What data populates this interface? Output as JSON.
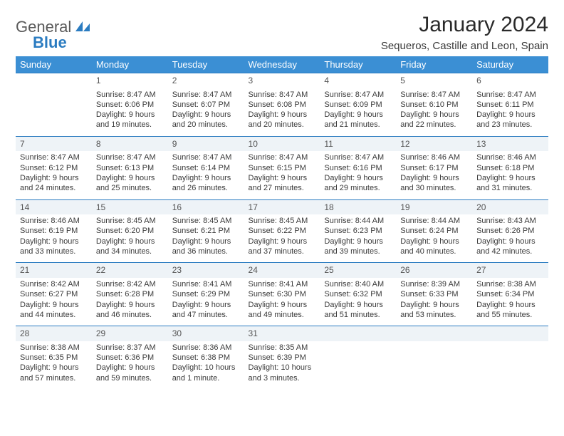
{
  "logo": {
    "line1": "General",
    "line2": "Blue"
  },
  "title": "January 2024",
  "location": "Sequeros, Castille and Leon, Spain",
  "colors": {
    "header_bg": "#3b8fd4",
    "header_text": "#ffffff",
    "daynum_bg": "#eef3f7",
    "rule": "#2b7cc1",
    "body_text": "#3a3a3a",
    "accent": "#2b7cc1"
  },
  "day_headers": [
    "Sunday",
    "Monday",
    "Tuesday",
    "Wednesday",
    "Thursday",
    "Friday",
    "Saturday"
  ],
  "weeks": [
    {
      "nums": [
        "",
        "1",
        "2",
        "3",
        "4",
        "5",
        "6"
      ],
      "details": [
        null,
        {
          "sunrise": "Sunrise: 8:47 AM",
          "sunset": "Sunset: 6:06 PM",
          "daylight1": "Daylight: 9 hours",
          "daylight2": "and 19 minutes."
        },
        {
          "sunrise": "Sunrise: 8:47 AM",
          "sunset": "Sunset: 6:07 PM",
          "daylight1": "Daylight: 9 hours",
          "daylight2": "and 20 minutes."
        },
        {
          "sunrise": "Sunrise: 8:47 AM",
          "sunset": "Sunset: 6:08 PM",
          "daylight1": "Daylight: 9 hours",
          "daylight2": "and 20 minutes."
        },
        {
          "sunrise": "Sunrise: 8:47 AM",
          "sunset": "Sunset: 6:09 PM",
          "daylight1": "Daylight: 9 hours",
          "daylight2": "and 21 minutes."
        },
        {
          "sunrise": "Sunrise: 8:47 AM",
          "sunset": "Sunset: 6:10 PM",
          "daylight1": "Daylight: 9 hours",
          "daylight2": "and 22 minutes."
        },
        {
          "sunrise": "Sunrise: 8:47 AM",
          "sunset": "Sunset: 6:11 PM",
          "daylight1": "Daylight: 9 hours",
          "daylight2": "and 23 minutes."
        }
      ]
    },
    {
      "nums": [
        "7",
        "8",
        "9",
        "10",
        "11",
        "12",
        "13"
      ],
      "details": [
        {
          "sunrise": "Sunrise: 8:47 AM",
          "sunset": "Sunset: 6:12 PM",
          "daylight1": "Daylight: 9 hours",
          "daylight2": "and 24 minutes."
        },
        {
          "sunrise": "Sunrise: 8:47 AM",
          "sunset": "Sunset: 6:13 PM",
          "daylight1": "Daylight: 9 hours",
          "daylight2": "and 25 minutes."
        },
        {
          "sunrise": "Sunrise: 8:47 AM",
          "sunset": "Sunset: 6:14 PM",
          "daylight1": "Daylight: 9 hours",
          "daylight2": "and 26 minutes."
        },
        {
          "sunrise": "Sunrise: 8:47 AM",
          "sunset": "Sunset: 6:15 PM",
          "daylight1": "Daylight: 9 hours",
          "daylight2": "and 27 minutes."
        },
        {
          "sunrise": "Sunrise: 8:47 AM",
          "sunset": "Sunset: 6:16 PM",
          "daylight1": "Daylight: 9 hours",
          "daylight2": "and 29 minutes."
        },
        {
          "sunrise": "Sunrise: 8:46 AM",
          "sunset": "Sunset: 6:17 PM",
          "daylight1": "Daylight: 9 hours",
          "daylight2": "and 30 minutes."
        },
        {
          "sunrise": "Sunrise: 8:46 AM",
          "sunset": "Sunset: 6:18 PM",
          "daylight1": "Daylight: 9 hours",
          "daylight2": "and 31 minutes."
        }
      ]
    },
    {
      "nums": [
        "14",
        "15",
        "16",
        "17",
        "18",
        "19",
        "20"
      ],
      "details": [
        {
          "sunrise": "Sunrise: 8:46 AM",
          "sunset": "Sunset: 6:19 PM",
          "daylight1": "Daylight: 9 hours",
          "daylight2": "and 33 minutes."
        },
        {
          "sunrise": "Sunrise: 8:45 AM",
          "sunset": "Sunset: 6:20 PM",
          "daylight1": "Daylight: 9 hours",
          "daylight2": "and 34 minutes."
        },
        {
          "sunrise": "Sunrise: 8:45 AM",
          "sunset": "Sunset: 6:21 PM",
          "daylight1": "Daylight: 9 hours",
          "daylight2": "and 36 minutes."
        },
        {
          "sunrise": "Sunrise: 8:45 AM",
          "sunset": "Sunset: 6:22 PM",
          "daylight1": "Daylight: 9 hours",
          "daylight2": "and 37 minutes."
        },
        {
          "sunrise": "Sunrise: 8:44 AM",
          "sunset": "Sunset: 6:23 PM",
          "daylight1": "Daylight: 9 hours",
          "daylight2": "and 39 minutes."
        },
        {
          "sunrise": "Sunrise: 8:44 AM",
          "sunset": "Sunset: 6:24 PM",
          "daylight1": "Daylight: 9 hours",
          "daylight2": "and 40 minutes."
        },
        {
          "sunrise": "Sunrise: 8:43 AM",
          "sunset": "Sunset: 6:26 PM",
          "daylight1": "Daylight: 9 hours",
          "daylight2": "and 42 minutes."
        }
      ]
    },
    {
      "nums": [
        "21",
        "22",
        "23",
        "24",
        "25",
        "26",
        "27"
      ],
      "details": [
        {
          "sunrise": "Sunrise: 8:42 AM",
          "sunset": "Sunset: 6:27 PM",
          "daylight1": "Daylight: 9 hours",
          "daylight2": "and 44 minutes."
        },
        {
          "sunrise": "Sunrise: 8:42 AM",
          "sunset": "Sunset: 6:28 PM",
          "daylight1": "Daylight: 9 hours",
          "daylight2": "and 46 minutes."
        },
        {
          "sunrise": "Sunrise: 8:41 AM",
          "sunset": "Sunset: 6:29 PM",
          "daylight1": "Daylight: 9 hours",
          "daylight2": "and 47 minutes."
        },
        {
          "sunrise": "Sunrise: 8:41 AM",
          "sunset": "Sunset: 6:30 PM",
          "daylight1": "Daylight: 9 hours",
          "daylight2": "and 49 minutes."
        },
        {
          "sunrise": "Sunrise: 8:40 AM",
          "sunset": "Sunset: 6:32 PM",
          "daylight1": "Daylight: 9 hours",
          "daylight2": "and 51 minutes."
        },
        {
          "sunrise": "Sunrise: 8:39 AM",
          "sunset": "Sunset: 6:33 PM",
          "daylight1": "Daylight: 9 hours",
          "daylight2": "and 53 minutes."
        },
        {
          "sunrise": "Sunrise: 8:38 AM",
          "sunset": "Sunset: 6:34 PM",
          "daylight1": "Daylight: 9 hours",
          "daylight2": "and 55 minutes."
        }
      ]
    },
    {
      "nums": [
        "28",
        "29",
        "30",
        "31",
        "",
        "",
        ""
      ],
      "details": [
        {
          "sunrise": "Sunrise: 8:38 AM",
          "sunset": "Sunset: 6:35 PM",
          "daylight1": "Daylight: 9 hours",
          "daylight2": "and 57 minutes."
        },
        {
          "sunrise": "Sunrise: 8:37 AM",
          "sunset": "Sunset: 6:36 PM",
          "daylight1": "Daylight: 9 hours",
          "daylight2": "and 59 minutes."
        },
        {
          "sunrise": "Sunrise: 8:36 AM",
          "sunset": "Sunset: 6:38 PM",
          "daylight1": "Daylight: 10 hours",
          "daylight2": "and 1 minute."
        },
        {
          "sunrise": "Sunrise: 8:35 AM",
          "sunset": "Sunset: 6:39 PM",
          "daylight1": "Daylight: 10 hours",
          "daylight2": "and 3 minutes."
        },
        null,
        null,
        null
      ]
    }
  ]
}
